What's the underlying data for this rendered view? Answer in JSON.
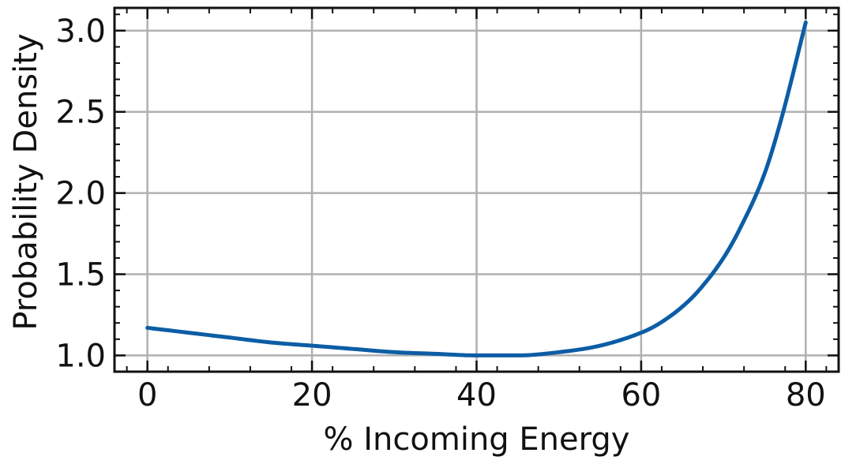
{
  "chart_data": {
    "type": "line",
    "title": "",
    "xlabel": "% Incoming Energy",
    "ylabel": "Probability Density",
    "xlim": [
      -4,
      84
    ],
    "ylim": [
      0.9,
      3.14
    ],
    "xticks": [
      0,
      20,
      40,
      60,
      80
    ],
    "xtick_labels": [
      "0",
      "20",
      "40",
      "60",
      "80"
    ],
    "yticks": [
      1.0,
      1.5,
      2.0,
      2.5,
      3.0
    ],
    "ytick_labels": [
      "1.0",
      "1.5",
      "2.0",
      "2.5",
      "3.0"
    ],
    "grid": true,
    "line_color": "#0c5da5",
    "series": [
      {
        "x": [
          0,
          5,
          10,
          15,
          20,
          25,
          30,
          35,
          40,
          45,
          50,
          55,
          60,
          62,
          65,
          67,
          70,
          72,
          75,
          77,
          80
        ],
        "y": [
          1.17,
          1.14,
          1.11,
          1.08,
          1.06,
          1.04,
          1.02,
          1.01,
          1.0,
          1.0,
          1.02,
          1.06,
          1.14,
          1.19,
          1.3,
          1.4,
          1.6,
          1.78,
          2.12,
          2.45,
          3.05
        ]
      }
    ]
  }
}
